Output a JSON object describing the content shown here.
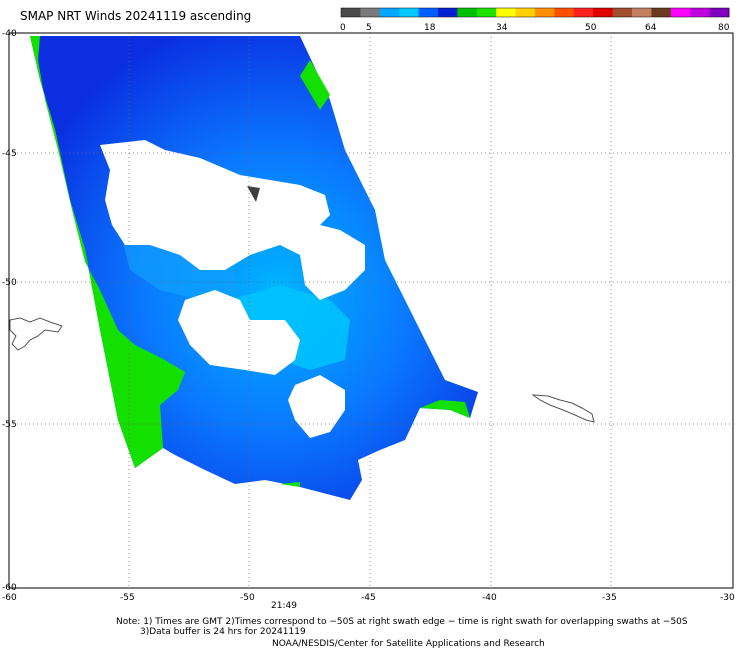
{
  "title": "SMAP NRT Winds 20241119 ascending",
  "colorbar": {
    "labels": [
      "0",
      "5",
      "18",
      "34",
      "50",
      "64",
      "80"
    ],
    "colors": [
      "#4a4a4a",
      "#7a7a7a",
      "#00a6ff",
      "#00c8ff",
      "#0060ff",
      "#0020d0",
      "#00c000",
      "#20e000",
      "#ffff00",
      "#ffd000",
      "#ff9000",
      "#ff5000",
      "#ff2020",
      "#e00000",
      "#a05030",
      "#c08060",
      "#6a3a20",
      "#ff00ff",
      "#c000e0",
      "#8000c0"
    ]
  },
  "axes": {
    "x_ticks": [
      "-60",
      "-55",
      "-50",
      "-45",
      "-40",
      "-35",
      "-30"
    ],
    "y_ticks": [
      "-40",
      "-45",
      "-50",
      "-55",
      "-60"
    ]
  },
  "time_label": "21:49",
  "notes": {
    "line1": "Note: 1) Times are GMT 2)Times correspond to −50S at right swath edge − time is right swath for overlapping swaths at −50S",
    "line2": "3)Data buffer is 24 hrs for 20241119",
    "line3": "NOAA/NESDIS/Center for Satellite Applications and Research"
  }
}
